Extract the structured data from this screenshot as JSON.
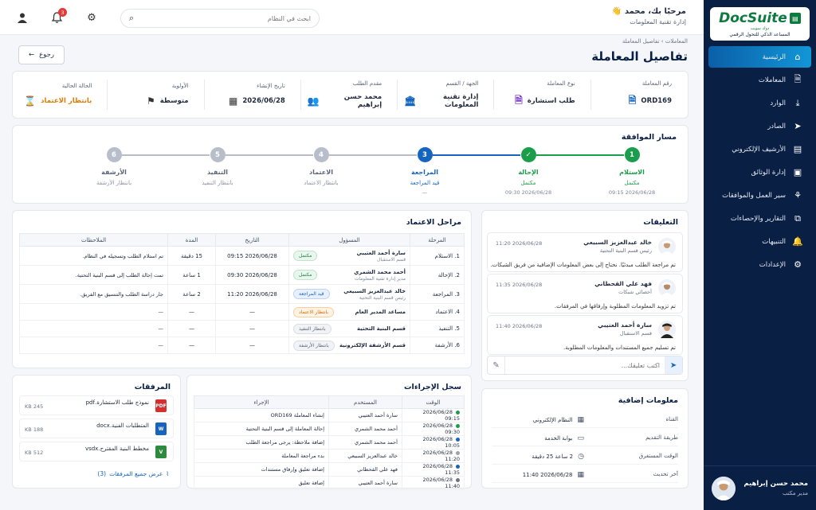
{
  "sidebar": {
    "logo": {
      "text": "DocSuite",
      "sub1": "المساعد الذكي للتحول الرقمي",
      "sub2": "دوك سويت"
    },
    "items": [
      {
        "label": "الرئيسية",
        "icon": "home-icon",
        "glyph": "⌂",
        "active": true
      },
      {
        "label": "المعاملات",
        "icon": "document-icon",
        "glyph": "🗎"
      },
      {
        "label": "الوارد",
        "icon": "inbox-download-icon",
        "glyph": "⤓"
      },
      {
        "label": "الصادر",
        "icon": "send-icon",
        "glyph": "➤"
      },
      {
        "label": "الأرشيف الإلكتروني",
        "icon": "archive-icon",
        "glyph": "▤"
      },
      {
        "label": "إدارة الوثائق",
        "icon": "documents-icon",
        "glyph": "▣"
      },
      {
        "label": "سير العمل والموافقات",
        "icon": "workflow-icon",
        "glyph": "⚘"
      },
      {
        "label": "التقارير والإحصاءات",
        "icon": "chart-icon",
        "glyph": "⧉"
      },
      {
        "label": "التنبيهات",
        "icon": "bell-icon",
        "glyph": "🔔"
      },
      {
        "label": "الإعدادات",
        "icon": "gear-icon",
        "glyph": "⚙"
      }
    ],
    "user": {
      "name": "محمد حسن إبراهيم",
      "role": "مدير مكتب"
    }
  },
  "topbar": {
    "greeting": "مرحبًا بك، محمد",
    "department": "إدارة تقنية المعلومات",
    "search_placeholder": "ابحث في النظام",
    "notification_count": "3"
  },
  "breadcrumb": {
    "root": "المعاملات",
    "sep": "›",
    "current": "تفاصيل المعاملة"
  },
  "page_title": "تفاصيل المعاملة",
  "back_label": "رجوع",
  "info": [
    {
      "label": "رقم المعاملة",
      "value": "ORD169",
      "icon": "file-number-icon",
      "glyph": "🗎",
      "color": "#1565c0"
    },
    {
      "label": "نوع المعاملة",
      "value": "طلب استشارة",
      "icon": "file-type-icon",
      "glyph": "🗎",
      "color": "#7b3fc4"
    },
    {
      "label": "الجهة / القسم",
      "value": "إدارة تقنية المعلومات",
      "icon": "building-icon",
      "glyph": "🏛",
      "color": "#1565c0"
    },
    {
      "label": "مقدم الطلب",
      "value": "محمد حسن إبراهيم",
      "icon": "users-icon",
      "glyph": "👥",
      "color": "#333"
    },
    {
      "label": "تاريخ الإنشاء",
      "value": "2026/06/28",
      "icon": "calendar-icon",
      "glyph": "▦",
      "color": "#333"
    },
    {
      "label": "الأولوية",
      "value": "متوسطة",
      "icon": "flag-icon",
      "glyph": "⚑",
      "color": "#333"
    },
    {
      "label": "الحالة الحالية",
      "value": "بانتظار الاعتماد",
      "icon": "hourglass-icon",
      "glyph": "⌛",
      "color": "#e07b00"
    }
  ],
  "approval_path": {
    "title": "مسار الموافقة",
    "steps": [
      {
        "num": "1",
        "name": "الاستلام",
        "status": "مكتمل",
        "date": "2026/06/28 09:15",
        "state": "done"
      },
      {
        "num": "✓",
        "name": "الإحالة",
        "status": "مكتمل",
        "date": "2026/06/28 09:30",
        "state": "done"
      },
      {
        "num": "3",
        "name": "المراجعة",
        "status": "قيد المراجعة",
        "date": "—",
        "state": "current"
      },
      {
        "num": "4",
        "name": "الاعتماد",
        "status": "بانتظار الاعتماد",
        "date": "",
        "state": "pending"
      },
      {
        "num": "5",
        "name": "التنفيذ",
        "status": "بانتظار التنفيذ",
        "date": "",
        "state": "pending"
      },
      {
        "num": "6",
        "name": "الأرشفة",
        "status": "بانتظار الأرشفة",
        "date": "",
        "state": "pending"
      }
    ]
  },
  "stages": {
    "title": "مراحل الاعتماد",
    "headers": [
      "المرحلة",
      "المسؤول",
      "التاريخ",
      "المدة",
      "الملاحظات"
    ],
    "rows": [
      {
        "stage": "1. الاستلام",
        "owner": "سارة أحمد العتيبي",
        "owner_role": "قسم الاستقبال",
        "status": "مكتمل",
        "pill": "green",
        "date": "2026/06/28 09:15",
        "dur": "15 دقيقة",
        "note": "تم استلام الطلب وتسجيله في النظام."
      },
      {
        "stage": "2. الإحالة",
        "owner": "أحمد محمد الشمري",
        "owner_role": "مدير إدارة تقنية المعلومات",
        "status": "مكتمل",
        "pill": "green",
        "date": "2026/06/28 09:30",
        "dur": "1 ساعة",
        "note": "تمت إحالة الطلب إلى قسم البنية التحتية."
      },
      {
        "stage": "3. المراجعة",
        "owner": "خالد عبدالعزيز السبيعي",
        "owner_role": "رئيس قسم البنية التحتية",
        "status": "قيد المراجعة",
        "pill": "blue",
        "date": "2026/06/28 11:20",
        "dur": "2 ساعة",
        "note": "جار دراسة الطلب والتنسيق مع الفريق."
      },
      {
        "stage": "4. الاعتماد",
        "owner": "مساعد المدير العام",
        "owner_role": "",
        "status": "بانتظار الاعتماد",
        "pill": "orange",
        "date": "—",
        "dur": "—",
        "note": "—"
      },
      {
        "stage": "5. التنفيذ",
        "owner": "قسم البنية التحتية",
        "owner_role": "",
        "status": "بانتظار التنفيذ",
        "pill": "gray",
        "date": "—",
        "dur": "—",
        "note": "—"
      },
      {
        "stage": "6. الأرشفة",
        "owner": "قسم الأرشفة الإلكترونية",
        "owner_role": "",
        "status": "بانتظار الأرشفة",
        "pill": "gray",
        "date": "—",
        "dur": "—",
        "note": "—"
      }
    ]
  },
  "comments": {
    "title": "التعليقات",
    "items": [
      {
        "name": "خالد عبدالعزيز السبيعي",
        "role": "رئيس قسم البنية التحتية",
        "time": "2026/06/28 11:20",
        "text": "تم مراجعة الطلب مبدئيًا. نحتاج إلى بعض المعلومات الإضافية من فريق الشبكات."
      },
      {
        "name": "فهد علي القحطاني",
        "role": "أخصائي شبكات",
        "time": "2026/06/28 11:35",
        "text": "تم تزويد المعلومات المطلوبة وإرفاقها في المرفقات."
      },
      {
        "name": "سارة أحمد العتيبي",
        "role": "قسم الاستقبال",
        "time": "2026/06/28 11:40",
        "text": "تم تسليم جميع المستندات والمعلومات المطلوبة."
      }
    ],
    "input_placeholder": "اكتب تعليقك..."
  },
  "actions_log": {
    "title": "سجل الإجراءات",
    "headers": [
      "الوقت",
      "المستخدم",
      "الإجراء"
    ],
    "rows": [
      {
        "time": "2026/06/28 09:15",
        "user": "سارة أحمد العتيبي",
        "action": "إنشاء المعاملة ORD169",
        "dot": "#1b9e4b"
      },
      {
        "time": "2026/06/28 09:30",
        "user": "أحمد محمد الشمري",
        "action": "إحالة المعاملة إلى قسم البنية التحتية",
        "dot": "#1b9e4b"
      },
      {
        "time": "2026/06/28 10:05",
        "user": "أحمد محمد الشمري",
        "action": "إضافة ملاحظة: يرجى مراجعة الطلب",
        "dot": "#1565c0"
      },
      {
        "time": "2026/06/28 11:20",
        "user": "خالد عبدالعزيز السبيعي",
        "action": "بدء مراجعة المعاملة",
        "dot": "#9aa3b0"
      },
      {
        "time": "2026/06/28 11:35",
        "user": "فهد علي القحطاني",
        "action": "إضافة تعليق وإرفاق مستندات",
        "dot": "#1565c0"
      },
      {
        "time": "2026/06/28 11:40",
        "user": "سارة أحمد العتيبي",
        "action": "إضافة تعليق",
        "dot": "#6a7486"
      }
    ]
  },
  "attachments": {
    "title": "المرفقات",
    "files": [
      {
        "name": "نموذج طلب الاستشارة.pdf",
        "size": "245 KB",
        "type": "PDF",
        "color": "#d32f2f"
      },
      {
        "name": "المتطلبات الفنية.docx",
        "size": "188 KB",
        "type": "W",
        "color": "#1565c0"
      },
      {
        "name": "مخطط البنية المقترح.vsdx",
        "size": "512 KB",
        "type": "V",
        "color": "#2e8b3e"
      }
    ],
    "view_all": "عرض جميع المرفقات",
    "count": "(3)"
  },
  "extra": {
    "title": "معلومات إضافية",
    "rows": [
      {
        "label": "القناة",
        "value": "النظام الإلكتروني",
        "icon": "grid-icon",
        "glyph": "▦"
      },
      {
        "label": "طريقة التقديم",
        "value": "بوابة الخدمة",
        "icon": "monitor-icon",
        "glyph": "▭"
      },
      {
        "label": "الوقت المستغرق",
        "value": "2 ساعة 25 دقيقة",
        "icon": "clock-icon",
        "glyph": "◷"
      },
      {
        "label": "آخر تحديث",
        "value": "2026/06/28 11:40",
        "icon": "calendar-icon",
        "glyph": "▦"
      }
    ]
  }
}
